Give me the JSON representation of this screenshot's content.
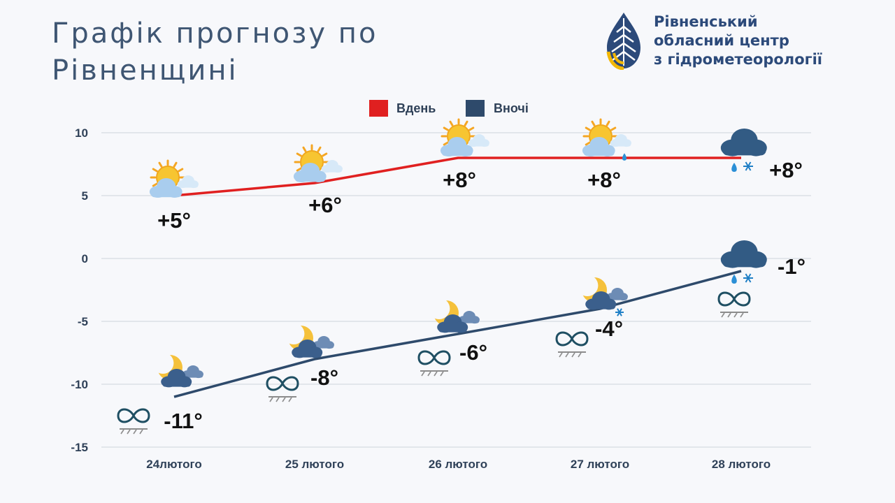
{
  "header": {
    "title_line1": "Графік прогнозу по",
    "title_line2": "Рівненщині"
  },
  "organization": {
    "line1": "Рівненський",
    "line2": "обласний центр",
    "line3": "з гідрометеорології",
    "logo_icon": "water-drop-logo-icon"
  },
  "colors": {
    "day": "#e02020",
    "night": "#2e4a6b",
    "grid": "#dcdfe6",
    "title": "#3f5673",
    "org": "#2c4a7a"
  },
  "chart_data": {
    "type": "line",
    "categories": [
      "24лютого",
      "25 лютого",
      "26 лютого",
      "27 лютого",
      "28 лютого"
    ],
    "series": [
      {
        "name": "Вдень",
        "values": [
          5,
          6,
          8,
          8,
          8
        ],
        "labels": [
          "+5°",
          "+6°",
          "+8°",
          "+8°",
          "+8°"
        ],
        "icons": [
          "sun-cloud-icon",
          "sun-cloud-icon",
          "sun-cloud-icon",
          "sun-cloud-rain-icon",
          "cloud-rain-snow-icon"
        ]
      },
      {
        "name": "Вночі",
        "values": [
          -11,
          -8,
          -6,
          -4,
          -1
        ],
        "labels": [
          "-11°",
          "-8°",
          "-6°",
          "-4°",
          "-1°"
        ],
        "icons": [
          "moon-cloud-icon",
          "moon-cloud-icon",
          "moon-cloud-icon",
          "moon-cloud-snow-icon",
          "cloud-rain-snow-icon"
        ],
        "extra_icons": [
          "fog-icon",
          "fog-icon",
          "fog-icon",
          "fog-icon",
          "fog-icon"
        ]
      }
    ],
    "yticks": [
      10,
      5,
      0,
      -5,
      -10,
      -15
    ],
    "ylim": [
      -15,
      10
    ],
    "grid": true,
    "legend": "top-center"
  }
}
